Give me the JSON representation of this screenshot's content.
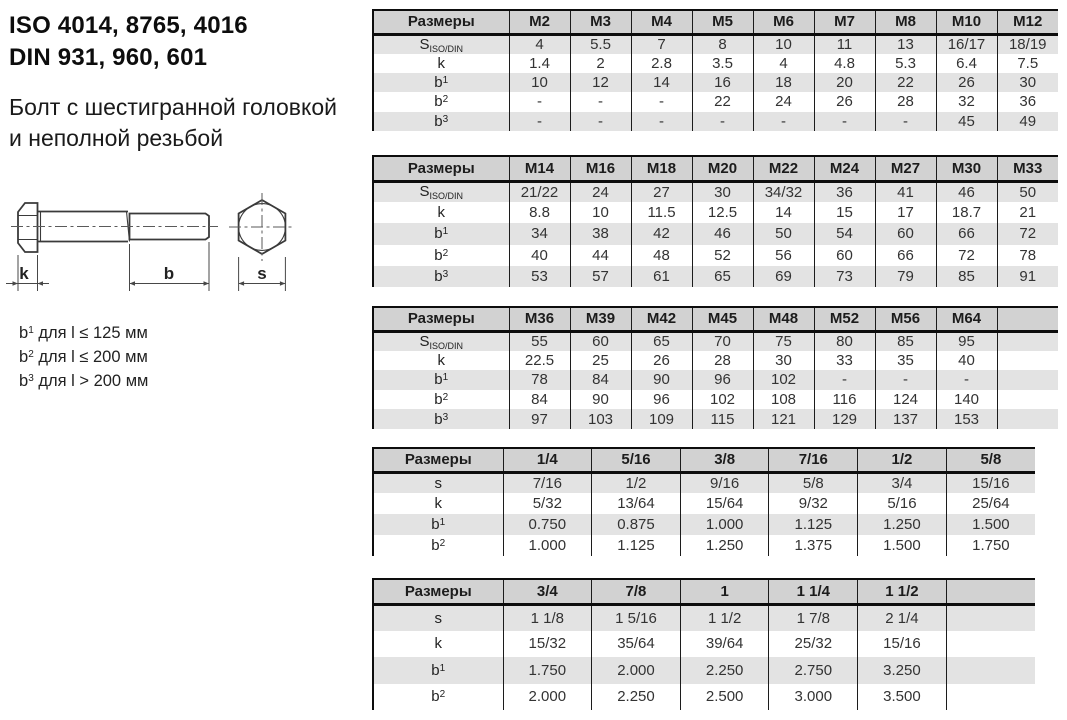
{
  "header": {
    "title_line1": "ISO 4014, 8765, 4016",
    "title_line2": "DIN 931, 960, 601",
    "subtitle_line1": "Болт с шестигранной головкой",
    "subtitle_line2": "и неполной резьбой"
  },
  "diagram": {
    "dim_k": "k",
    "dim_b": "b",
    "dim_s": "s"
  },
  "notes": [
    {
      "base": "b",
      "sup": "1",
      "text": " для l ≤ 125 мм"
    },
    {
      "base": "b",
      "sup": "2",
      "text": " для l ≤ 200 мм"
    },
    {
      "base": "b",
      "sup": "3",
      "text": " для l > 200 мм"
    }
  ],
  "tables": [
    {
      "header_label": "Размеры",
      "columns": [
        "M2",
        "M3",
        "M4",
        "M5",
        "M6",
        "M7",
        "M8",
        "M10",
        "M12"
      ],
      "trailing_empty_col": false,
      "rows": [
        {
          "label": {
            "base": "S",
            "sub": "ISO/DIN"
          },
          "values": [
            "4",
            "5.5",
            "7",
            "8",
            "10",
            "11",
            "13",
            "16/17",
            "18/19"
          ]
        },
        {
          "label": {
            "base": "k"
          },
          "values": [
            "1.4",
            "2",
            "2.8",
            "3.5",
            "4",
            "4.8",
            "5.3",
            "6.4",
            "7.5"
          ]
        },
        {
          "label": {
            "base": "b",
            "sup": "1"
          },
          "values": [
            "10",
            "12",
            "14",
            "16",
            "18",
            "20",
            "22",
            "26",
            "30"
          ]
        },
        {
          "label": {
            "base": "b",
            "sup": "2"
          },
          "values": [
            "-",
            "-",
            "-",
            "22",
            "24",
            "26",
            "28",
            "32",
            "36"
          ]
        },
        {
          "label": {
            "base": "b",
            "sup": "3"
          },
          "values": [
            "-",
            "-",
            "-",
            "-",
            "-",
            "-",
            "-",
            "45",
            "49"
          ]
        }
      ]
    },
    {
      "header_label": "Размеры",
      "columns": [
        "M14",
        "M16",
        "M18",
        "M20",
        "M22",
        "M24",
        "M27",
        "M30",
        "M33"
      ],
      "trailing_empty_col": false,
      "rows": [
        {
          "label": {
            "base": "S",
            "sub": "ISO/DIN"
          },
          "values": [
            "21/22",
            "24",
            "27",
            "30",
            "34/32",
            "36",
            "41",
            "46",
            "50"
          ]
        },
        {
          "label": {
            "base": "k"
          },
          "values": [
            "8.8",
            "10",
            "11.5",
            "12.5",
            "14",
            "15",
            "17",
            "18.7",
            "21"
          ]
        },
        {
          "label": {
            "base": "b",
            "sup": "1"
          },
          "values": [
            "34",
            "38",
            "42",
            "46",
            "50",
            "54",
            "60",
            "66",
            "72"
          ]
        },
        {
          "label": {
            "base": "b",
            "sup": "2"
          },
          "values": [
            "40",
            "44",
            "48",
            "52",
            "56",
            "60",
            "66",
            "72",
            "78"
          ]
        },
        {
          "label": {
            "base": "b",
            "sup": "3"
          },
          "values": [
            "53",
            "57",
            "61",
            "65",
            "69",
            "73",
            "79",
            "85",
            "91"
          ]
        }
      ]
    },
    {
      "header_label": "Размеры",
      "columns": [
        "M36",
        "M39",
        "M42",
        "M45",
        "M48",
        "M52",
        "M56",
        "M64"
      ],
      "trailing_empty_col": true,
      "rows": [
        {
          "label": {
            "base": "S",
            "sub": "ISO/DIN"
          },
          "values": [
            "55",
            "60",
            "65",
            "70",
            "75",
            "80",
            "85",
            "95"
          ]
        },
        {
          "label": {
            "base": "k"
          },
          "values": [
            "22.5",
            "25",
            "26",
            "28",
            "30",
            "33",
            "35",
            "40"
          ]
        },
        {
          "label": {
            "base": "b",
            "sup": "1"
          },
          "values": [
            "78",
            "84",
            "90",
            "96",
            "102",
            "-",
            "-",
            "-"
          ]
        },
        {
          "label": {
            "base": "b",
            "sup": "2"
          },
          "values": [
            "84",
            "90",
            "96",
            "102",
            "108",
            "116",
            "124",
            "140"
          ]
        },
        {
          "label": {
            "base": "b",
            "sup": "3"
          },
          "values": [
            "97",
            "103",
            "109",
            "115",
            "121",
            "129",
            "137",
            "153"
          ]
        }
      ]
    },
    {
      "header_label": "Размеры",
      "columns": [
        "1/4",
        "5/16",
        "3/8",
        "7/16",
        "1/2",
        "5/8"
      ],
      "trailing_empty_col": false,
      "rows": [
        {
          "label": {
            "base": "s"
          },
          "values": [
            "7/16",
            "1/2",
            "9/16",
            "5/8",
            "3/4",
            "15/16"
          ]
        },
        {
          "label": {
            "base": "k"
          },
          "values": [
            "5/32",
            "13/64",
            "15/64",
            "9/32",
            "5/16",
            "25/64"
          ]
        },
        {
          "label": {
            "base": "b",
            "sup": "1"
          },
          "values": [
            "0.750",
            "0.875",
            "1.000",
            "1.125",
            "1.250",
            "1.500"
          ]
        },
        {
          "label": {
            "base": "b",
            "sup": "2"
          },
          "values": [
            "1.000",
            "1.125",
            "1.250",
            "1.375",
            "1.500",
            "1.750"
          ]
        }
      ]
    },
    {
      "header_label": "Размеры",
      "columns": [
        "3/4",
        "7/8",
        "1",
        "1 1/4",
        "1 1/2"
      ],
      "trailing_empty_col": true,
      "rows": [
        {
          "label": {
            "base": "s"
          },
          "values": [
            "1 1/8",
            "1 5/16",
            "1 1/2",
            "1 7/8",
            "2 1/4"
          ]
        },
        {
          "label": {
            "base": "k"
          },
          "values": [
            "15/32",
            "35/64",
            "39/64",
            "25/32",
            "15/16"
          ]
        },
        {
          "label": {
            "base": "b",
            "sup": "1"
          },
          "values": [
            "1.750",
            "2.000",
            "2.250",
            "2.750",
            "3.250"
          ]
        },
        {
          "label": {
            "base": "b",
            "sup": "2"
          },
          "values": [
            "2.000",
            "2.250",
            "2.500",
            "3.000",
            "3.500"
          ]
        }
      ]
    }
  ]
}
